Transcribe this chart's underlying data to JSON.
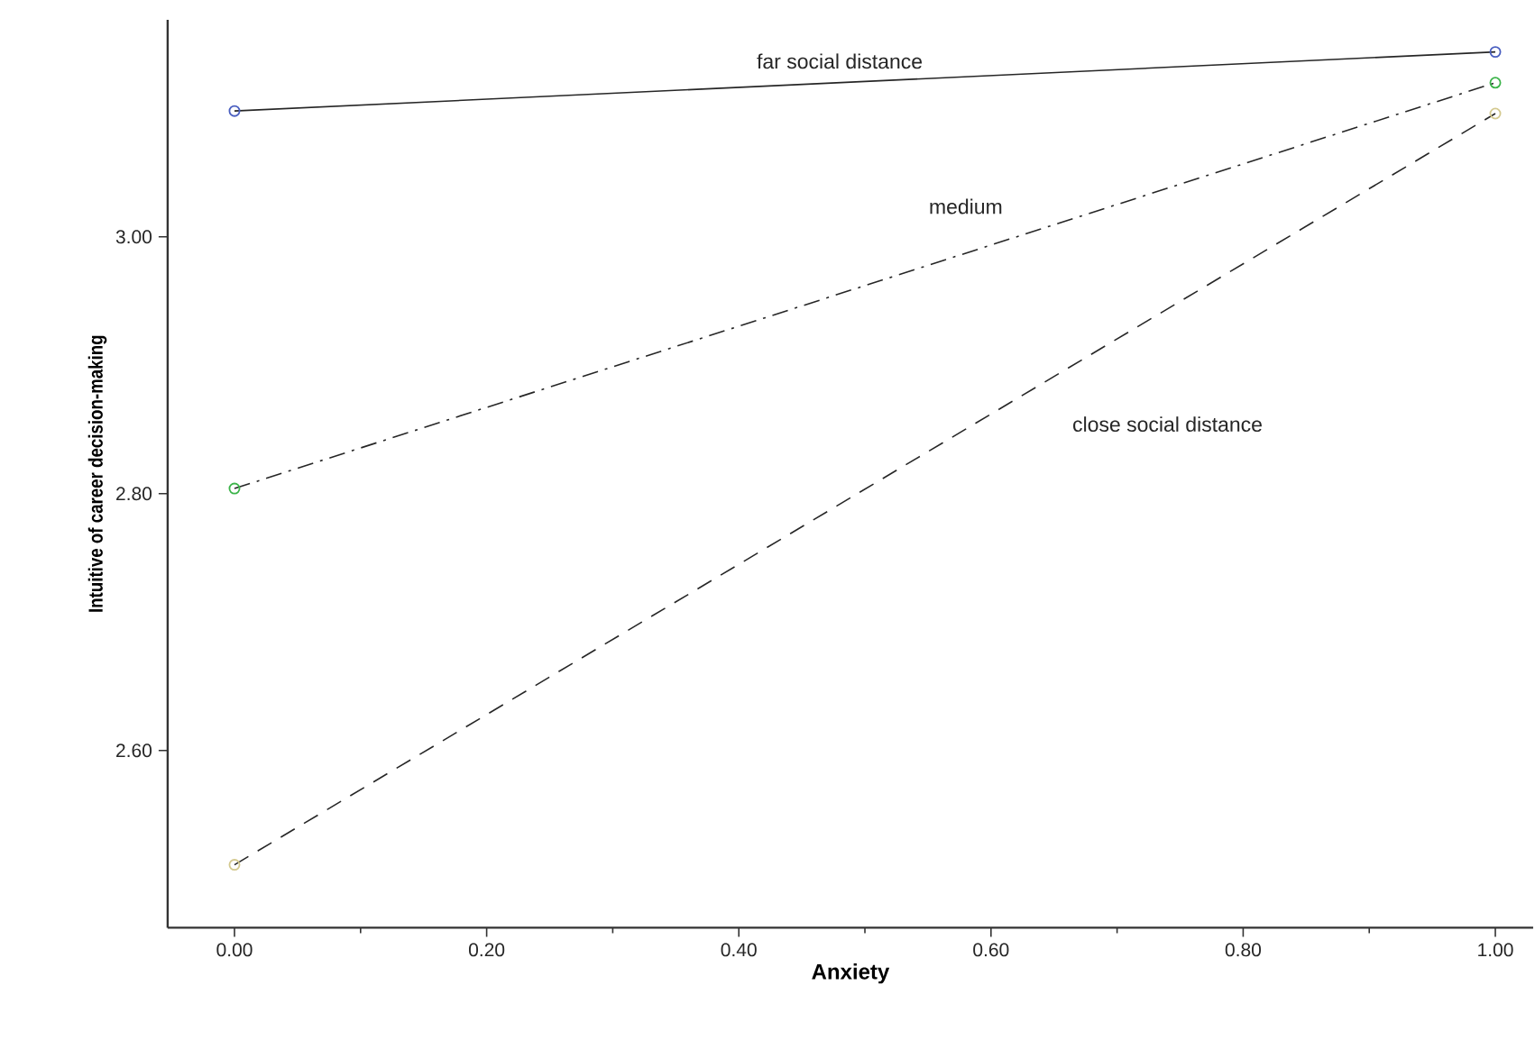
{
  "chart_data": {
    "type": "line",
    "xlabel": "Anxiety",
    "ylabel": "Intuitive of career decision-making",
    "x": [
      0,
      1
    ],
    "series": [
      {
        "name": "far social distance",
        "color": "#4a5fc0",
        "values": [
          3.098,
          3.144
        ],
        "line_style": "solid"
      },
      {
        "name": "medium",
        "color": "#3cb44a",
        "values": [
          2.804,
          3.12
        ],
        "line_style": "dashdot"
      },
      {
        "name": "close social distance",
        "color": "#d4c98f",
        "values": [
          2.511,
          3.096
        ],
        "line_style": "dashed"
      }
    ],
    "xlim": [
      -0.053,
      1.03
    ],
    "xticks": [
      {
        "value": 0,
        "label": "0.00"
      },
      {
        "value": 0.2,
        "label": "0.20"
      },
      {
        "value": 0.4,
        "label": "0.40"
      },
      {
        "value": 0.6,
        "label": "0.60"
      },
      {
        "value": 0.8,
        "label": "0.80"
      },
      {
        "value": 1,
        "label": "1.00"
      }
    ],
    "ylim": [
      2.462,
      3.169
    ],
    "yticks": [
      {
        "value": 2.6,
        "label": "2.60"
      },
      {
        "value": 2.8,
        "label": "2.80"
      },
      {
        "value": 3.0,
        "label": "3.00"
      }
    ],
    "marker": "circle",
    "grid": false,
    "legend": false
  }
}
